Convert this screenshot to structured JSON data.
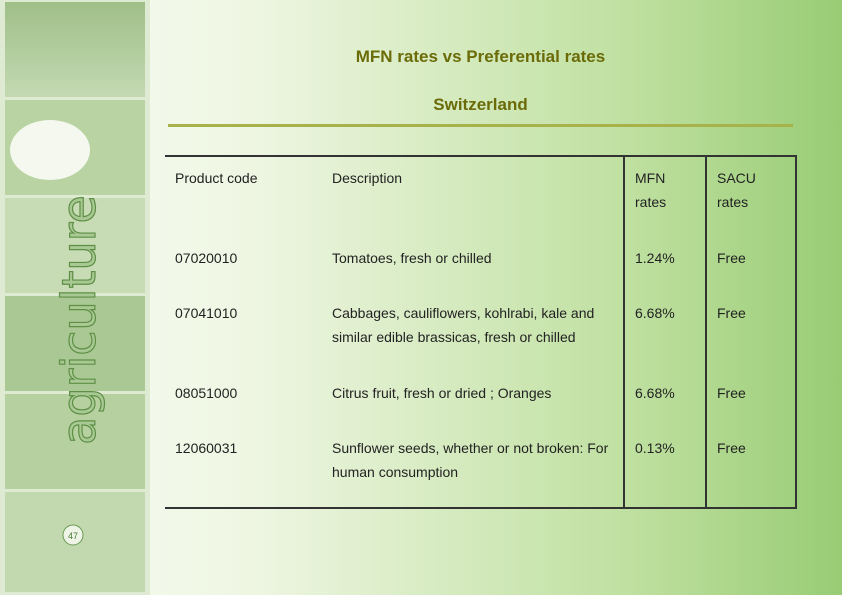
{
  "header": {
    "title": "MFN rates vs Preferential rates",
    "subtitle": "Switzerland"
  },
  "sidebar": {
    "label": "agriculture",
    "page_number": "47"
  },
  "table": {
    "columns": [
      "Product code",
      "Description",
      "MFN rates",
      "SACU rates"
    ],
    "rows": [
      [
        "07020010",
        "Tomatoes, fresh or chilled",
        "1.24%",
        "Free"
      ],
      [
        "07041010",
        "Cabbages, cauliflowers, kohlrabi, kale and similar edible brassicas, fresh or chilled",
        "6.68%",
        "Free"
      ],
      [
        "08051000",
        "Citrus fruit, fresh or dried ; Oranges",
        "6.68%",
        "Free"
      ],
      [
        "12060031",
        "Sunflower seeds, whether or not broken: For human consumption",
        "0.13%",
        "Free"
      ]
    ]
  }
}
